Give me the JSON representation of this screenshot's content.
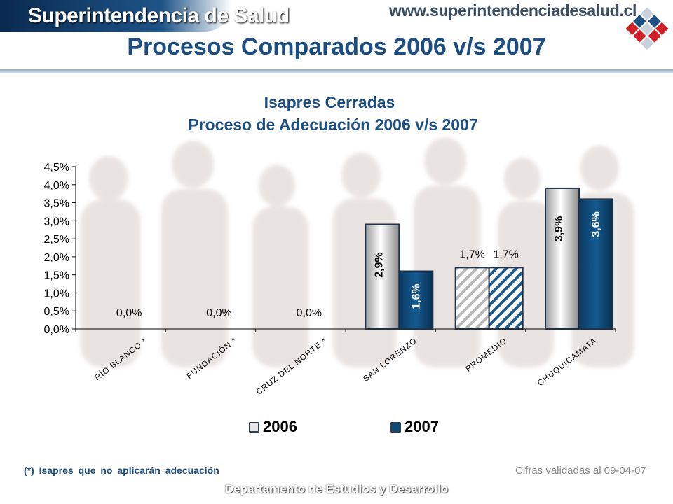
{
  "header": {
    "brand": "Superintendencia de Salud",
    "url": "www.superintendenciadesalud.cl"
  },
  "page_title": "Procesos Comparados 2006 v/s 2007",
  "footer": {
    "footnote": "(*) Isapres que no aplicarán adecuación",
    "validated": "Cifras validadas al 09-04-07",
    "department": "Departamento de Estudios y Desarrollo"
  },
  "colors": {
    "title": "#1d4e82",
    "series_2006": "#e6e6e6",
    "series_2007": "#0e4a78"
  },
  "chart_data": {
    "type": "bar",
    "title": "Isapres Cerradas",
    "subtitle": "Proceso de Adecuación 2006 v/s 2007",
    "categories": [
      "RÍO BLANCO *",
      "FUNDACIÓN *",
      "CRUZ DEL NORTE *",
      "SAN LORENZO",
      "PROMEDIO",
      "CHUQUICAMATA"
    ],
    "series": [
      {
        "name": "2006",
        "values": [
          0.0,
          0.0,
          0.0,
          2.9,
          1.7,
          3.9
        ],
        "labels": [
          "0,0%",
          "0,0%",
          "0,0%",
          "2,9%",
          "1,7%",
          "3,9%"
        ]
      },
      {
        "name": "2007",
        "values": [
          null,
          null,
          null,
          1.6,
          1.7,
          3.6
        ],
        "labels": [
          "",
          "",
          "",
          "1,6%",
          "1,7%",
          "3,6%"
        ]
      }
    ],
    "yticks": [
      "0,0%",
      "0,5%",
      "1,0%",
      "1,5%",
      "2,0%",
      "2,5%",
      "3,0%",
      "3,5%",
      "4,0%",
      "4,5%"
    ],
    "ylim": [
      0,
      4.5
    ],
    "hatched_category": "PROMEDIO",
    "legend_placement": "bottom",
    "grid": false
  }
}
